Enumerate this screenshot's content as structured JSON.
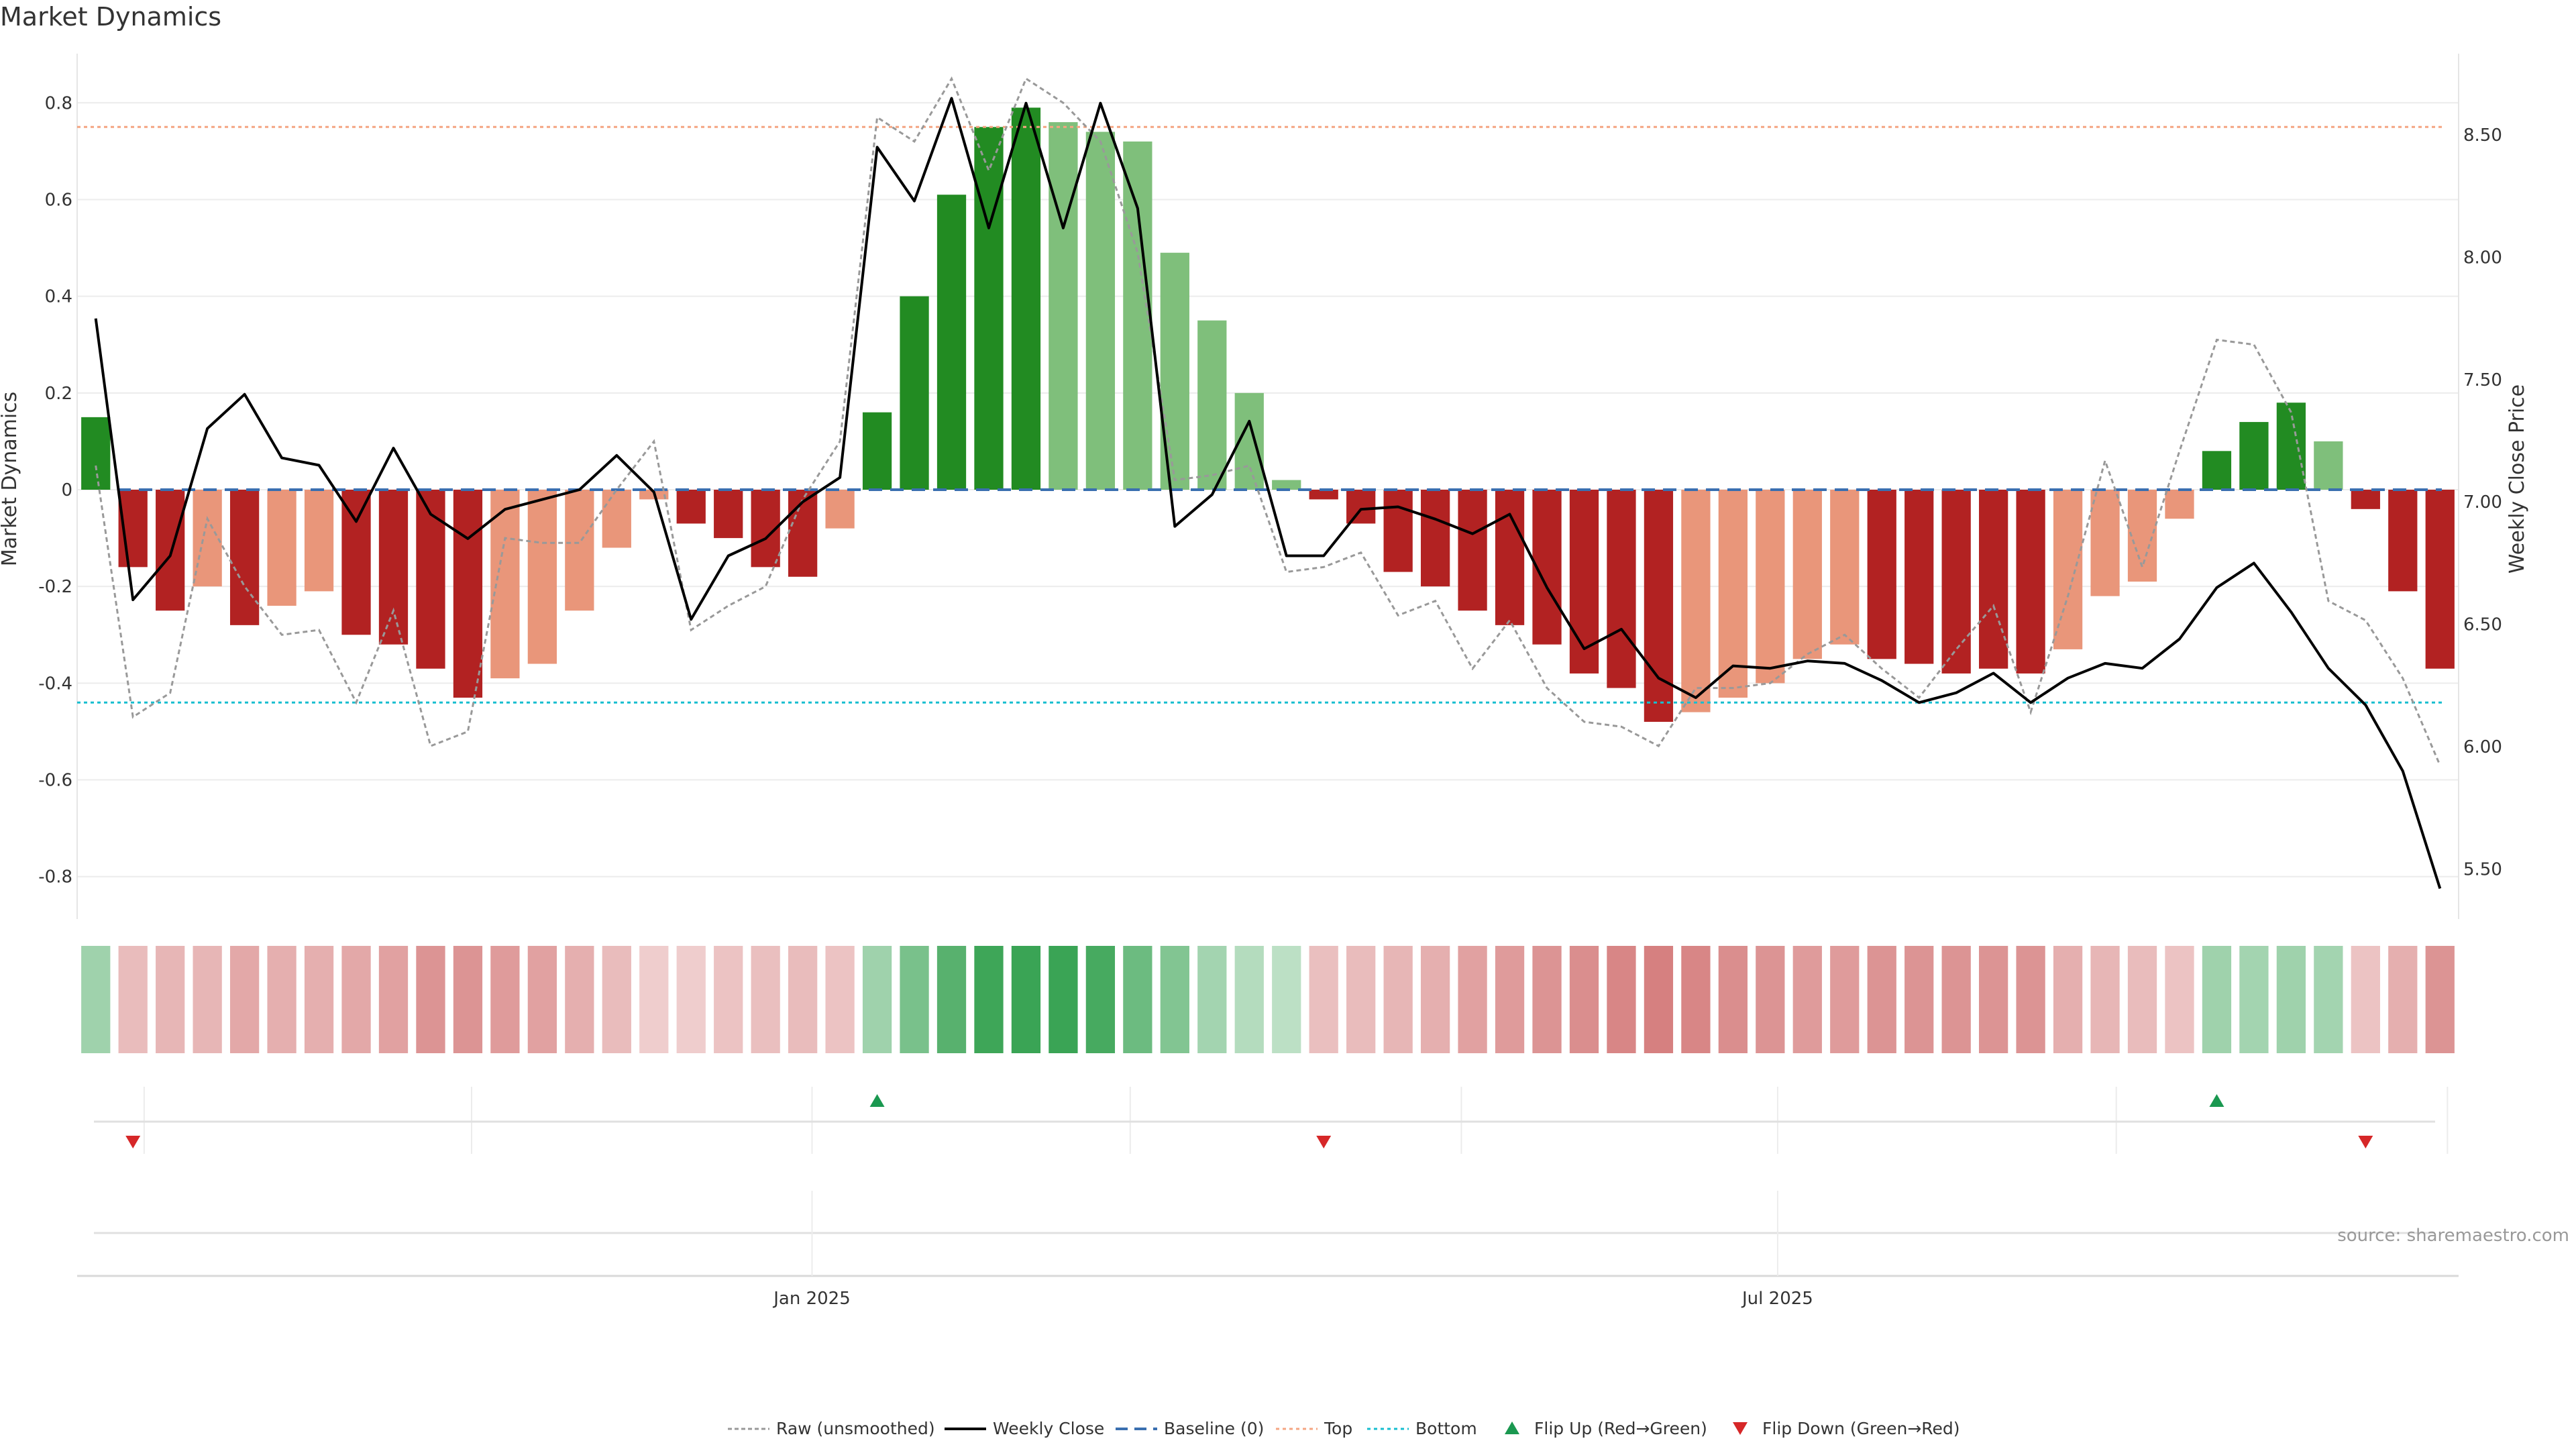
{
  "chart_data": {
    "type": "bar",
    "title": "Market Dynamics",
    "ylabel_left": "Market Dynamics",
    "ylabel_right": "Weekly Close Price",
    "source": "source: sharemaestro.com",
    "ylim_left": [
      -0.86,
      0.86
    ],
    "ylim_right": [
      5.35,
      8.75
    ],
    "left_ticks": [
      "0.8",
      "0.6",
      "0.4",
      "0.2",
      "0",
      "-0.2",
      "-0.4",
      "-0.6",
      "-0.8"
    ],
    "right_ticks": [
      "8.50",
      "8.00",
      "7.50",
      "7.00",
      "6.50",
      "6.00",
      "5.50"
    ],
    "x_tick_labels": [
      {
        "label": "Jan 2025",
        "week": 19.75
      },
      {
        "label": "Jul 2025",
        "week": 45.7
      }
    ],
    "top_level": 0.75,
    "bottom_level": -0.44,
    "baseline": 0,
    "market_dynamics": [
      0.15,
      -0.16,
      -0.25,
      -0.2,
      -0.28,
      -0.24,
      -0.21,
      -0.3,
      -0.32,
      -0.37,
      -0.43,
      -0.39,
      -0.36,
      -0.25,
      -0.12,
      -0.02,
      -0.07,
      -0.1,
      -0.16,
      -0.18,
      -0.08,
      0.16,
      0.4,
      0.61,
      0.75,
      0.79,
      0.76,
      0.74,
      0.72,
      0.49,
      0.35,
      0.2,
      0.02,
      -0.02,
      -0.07,
      -0.17,
      -0.2,
      -0.25,
      -0.28,
      -0.32,
      -0.38,
      -0.41,
      -0.48,
      -0.46,
      -0.43,
      -0.4,
      -0.35,
      -0.32,
      -0.35,
      -0.36,
      -0.38,
      -0.37,
      -0.38,
      -0.33,
      -0.22,
      -0.19,
      -0.06,
      0.08,
      0.14,
      0.18,
      0.1,
      -0.04,
      -0.21,
      -0.37
    ],
    "bar_class": [
      "strong_pos",
      "strong_neg",
      "strong_neg",
      "weak_neg",
      "strong_neg",
      "weak_neg",
      "weak_neg",
      "strong_neg",
      "strong_neg",
      "strong_neg",
      "strong_neg",
      "weak_neg",
      "weak_neg",
      "weak_neg",
      "weak_neg",
      "weak_neg",
      "strong_neg",
      "strong_neg",
      "strong_neg",
      "strong_neg",
      "weak_neg",
      "strong_pos",
      "strong_pos",
      "strong_pos",
      "strong_pos",
      "strong_pos",
      "weak_pos",
      "weak_pos",
      "weak_pos",
      "weak_pos",
      "weak_pos",
      "weak_pos",
      "weak_pos",
      "strong_neg",
      "strong_neg",
      "strong_neg",
      "strong_neg",
      "strong_neg",
      "strong_neg",
      "strong_neg",
      "strong_neg",
      "strong_neg",
      "strong_neg",
      "weak_neg",
      "weak_neg",
      "weak_neg",
      "weak_neg",
      "weak_neg",
      "strong_neg",
      "strong_neg",
      "strong_neg",
      "strong_neg",
      "strong_neg",
      "weak_neg",
      "weak_neg",
      "weak_neg",
      "weak_neg",
      "strong_pos",
      "strong_pos",
      "strong_pos",
      "weak_pos",
      "strong_neg",
      "strong_neg",
      "strong_neg"
    ],
    "raw_unsmoothed": [
      0.05,
      -0.47,
      -0.42,
      -0.06,
      -0.2,
      -0.3,
      -0.29,
      -0.44,
      -0.25,
      -0.53,
      -0.5,
      -0.1,
      -0.11,
      -0.11,
      0,
      0.1,
      -0.29,
      -0.24,
      -0.2,
      -0.02,
      0.1,
      0.77,
      0.72,
      0.85,
      0.66,
      0.85,
      0.8,
      0.72,
      0.49,
      0.02,
      0.03,
      0.05,
      -0.17,
      -0.16,
      -0.13,
      -0.26,
      -0.23,
      -0.37,
      -0.27,
      -0.41,
      -0.48,
      -0.49,
      -0.53,
      -0.41,
      -0.41,
      -0.4,
      -0.34,
      -0.3,
      -0.37,
      -0.43,
      -0.33,
      -0.24,
      -0.46,
      -0.22,
      0.06,
      -0.16,
      0.08,
      0.31,
      0.3,
      0.16,
      -0.23,
      -0.27,
      -0.39,
      -0.57
    ],
    "weekly_close": [
      7.75,
      6.6,
      6.78,
      7.3,
      7.44,
      7.18,
      7.15,
      6.92,
      7.22,
      6.95,
      6.85,
      6.97,
      7.01,
      7.05,
      7.19,
      7.04,
      6.52,
      6.78,
      6.85,
      7.0,
      7.1,
      8.45,
      8.23,
      8.65,
      8.12,
      8.63,
      8.12,
      8.63,
      8.2,
      6.9,
      7.03,
      7.33,
      6.78,
      6.78,
      6.97,
      6.98,
      6.93,
      6.87,
      6.95,
      6.65,
      6.4,
      6.48,
      6.28,
      6.2,
      6.33,
      6.32,
      6.35,
      6.34,
      6.27,
      6.18,
      6.22,
      6.3,
      6.18,
      6.28,
      6.34,
      6.32,
      6.44,
      6.65,
      6.75,
      6.55,
      6.32,
      6.17,
      5.9,
      5.42
    ],
    "heat_strength": [
      0.33,
      0.25,
      0.3,
      0.3,
      0.4,
      0.35,
      0.35,
      0.4,
      0.45,
      0.55,
      0.55,
      0.5,
      0.45,
      0.35,
      0.25,
      0.12,
      0.12,
      0.2,
      0.22,
      0.25,
      0.2,
      0.33,
      0.55,
      0.75,
      0.9,
      0.92,
      0.92,
      0.85,
      0.63,
      0.5,
      0.3,
      0.2,
      0.15,
      0.22,
      0.25,
      0.3,
      0.35,
      0.45,
      0.5,
      0.55,
      0.6,
      0.65,
      0.7,
      0.65,
      0.6,
      0.55,
      0.5,
      0.5,
      0.55,
      0.55,
      0.55,
      0.55,
      0.55,
      0.35,
      0.3,
      0.25,
      0.2,
      0.32,
      0.3,
      0.32,
      0.3,
      0.2,
      0.35,
      0.55
    ],
    "flip_up_weeks": [
      21,
      57
    ],
    "flip_down_weeks": [
      1,
      33,
      61
    ],
    "legend": [
      {
        "key": "raw",
        "label": "Raw (unsmoothed)"
      },
      {
        "key": "close",
        "label": "Weekly Close"
      },
      {
        "key": "baseline",
        "label": "Baseline (0)"
      },
      {
        "key": "top",
        "label": "Top"
      },
      {
        "key": "bottom",
        "label": "Bottom"
      },
      {
        "key": "flip_up",
        "label": "Flip Up (Red→Green)"
      },
      {
        "key": "flip_down",
        "label": "Flip Down (Green→Red)"
      }
    ],
    "colors": {
      "strong_pos": "#228b22",
      "weak_pos": "#7fbf7b",
      "strong_neg": "#b22222",
      "weak_neg": "#e9967a",
      "close": "#000000",
      "raw": "#999999",
      "baseline": "#3a6fb0",
      "top": "#f4a582",
      "bottom": "#17becf",
      "flip_up": "#1a9850",
      "flip_down": "#d62728",
      "heat_pos": "#2e9e4a",
      "heat_neg": "#c95858"
    }
  }
}
